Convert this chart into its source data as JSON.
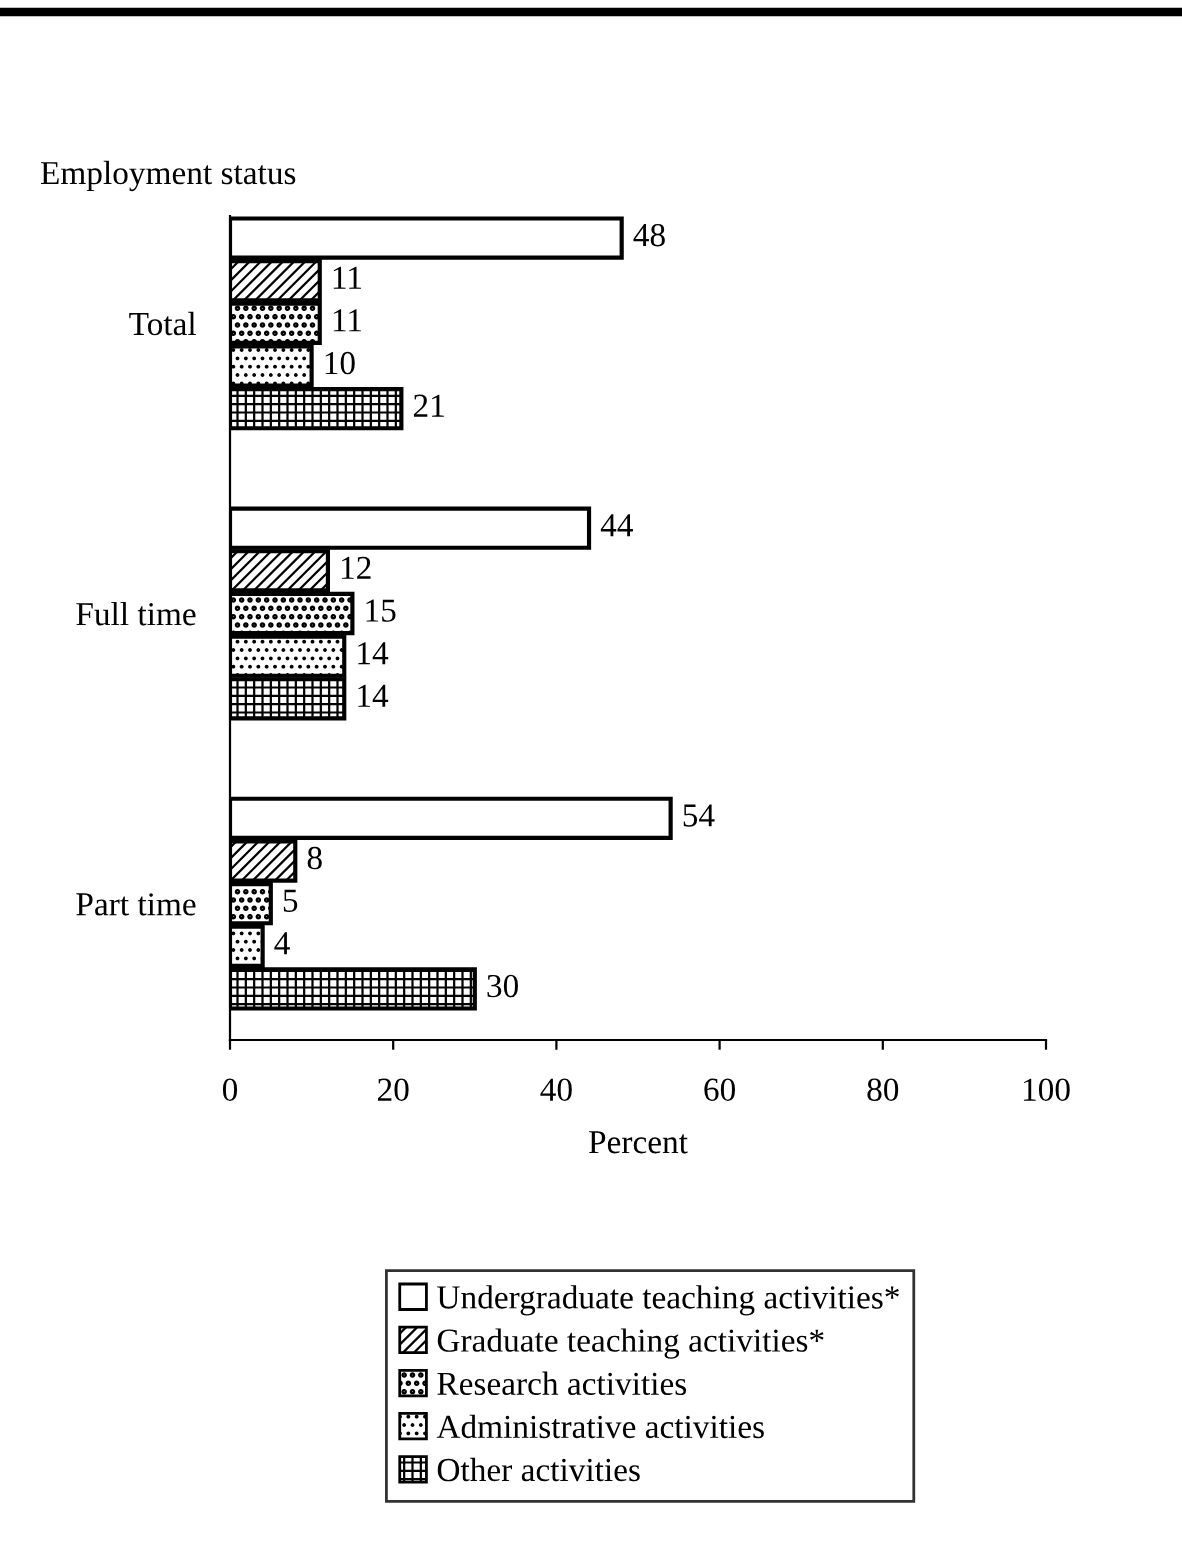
{
  "chart_data": {
    "type": "bar",
    "orientation": "horizontal",
    "ylabel": "Employment status",
    "xlabel": "Percent",
    "categories": [
      "Total",
      "Full time",
      "Part time"
    ],
    "series": [
      {
        "name": "Undergraduate teaching activities*",
        "color": "#ffffff",
        "values": [
          48,
          44,
          54
        ]
      },
      {
        "name": "Graduate teaching activities*",
        "color": "#000000",
        "values": [
          11,
          12,
          8
        ]
      },
      {
        "name": "Research activities",
        "color": "#000000",
        "values": [
          11,
          15,
          5
        ]
      },
      {
        "name": "Administrative activities",
        "color": "#000000",
        "values": [
          10,
          14,
          4
        ]
      },
      {
        "name": "Other activities",
        "color": "#000000",
        "values": [
          21,
          14,
          30
        ]
      }
    ],
    "xlim": [
      0,
      100
    ],
    "xticks": [
      0,
      20,
      40,
      60,
      80,
      100
    ],
    "data_labels": true,
    "grid": false,
    "legend": "bottom"
  }
}
